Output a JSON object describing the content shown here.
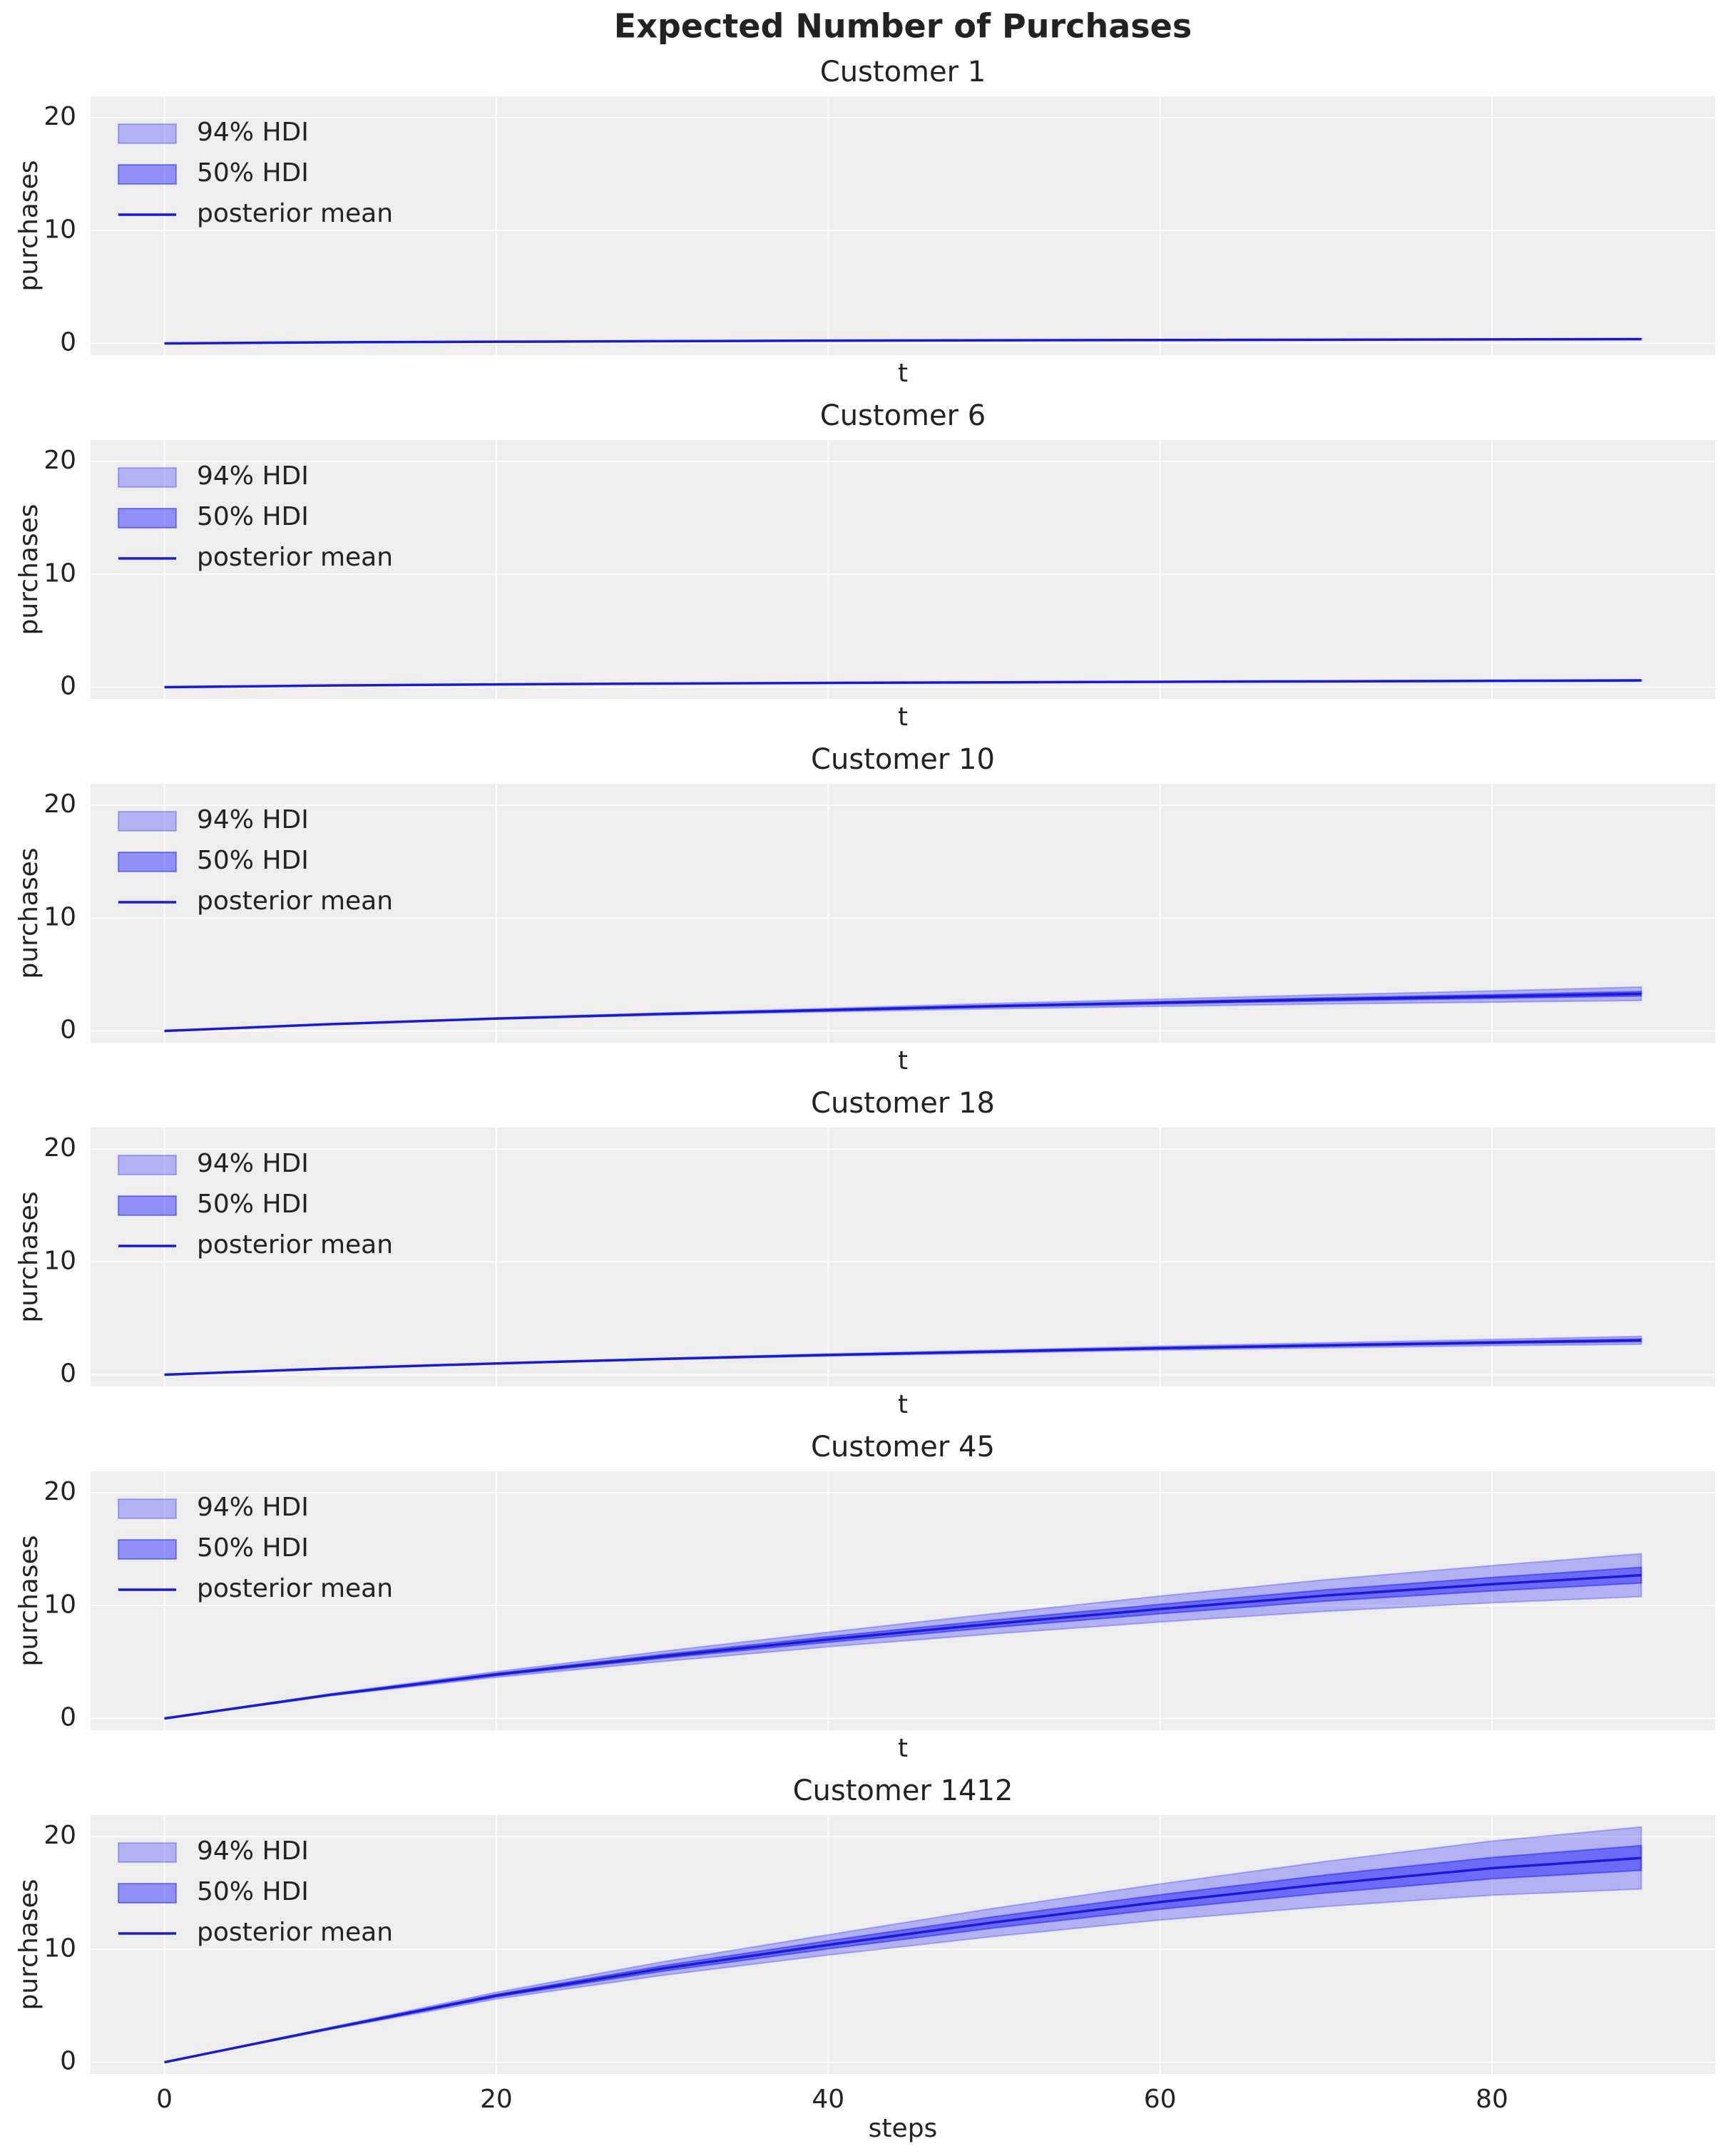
{
  "title": "Expected Number of Purchases",
  "chart_data": [
    {
      "type": "line",
      "title": "Customer 1",
      "xlabel": "t",
      "ylabel": "purchases",
      "show_xtick_labels": false,
      "x": [
        0,
        10,
        20,
        30,
        40,
        50,
        60,
        70,
        80,
        89
      ],
      "xlim": [
        -4.45,
        93.45
      ],
      "ylim": [
        -1.04,
        21.9
      ],
      "xticks": [
        0,
        20,
        40,
        60,
        80
      ],
      "yticks": [
        0,
        10,
        20
      ],
      "grid": true,
      "legend": "upper left",
      "series": [
        {
          "name": "94% HDI",
          "color": "#0000ff",
          "opacity": 0.25,
          "lower": [
            0,
            0.1,
            0.14,
            0.19,
            0.23,
            0.26,
            0.28,
            0.3,
            0.32,
            0.34
          ],
          "upper": [
            0,
            0.1,
            0.16,
            0.21,
            0.27,
            0.3,
            0.33,
            0.36,
            0.4,
            0.42
          ]
        },
        {
          "name": "50% HDI",
          "color": "#0000ff",
          "opacity": 0.4,
          "lower": [
            0,
            0.1,
            0.15,
            0.2,
            0.24,
            0.27,
            0.29,
            0.32,
            0.35,
            0.36
          ],
          "upper": [
            0,
            0.1,
            0.15,
            0.2,
            0.26,
            0.29,
            0.31,
            0.34,
            0.37,
            0.4
          ]
        },
        {
          "name": "posterior mean",
          "color": "#1a1ad6",
          "values": [
            0,
            0.1,
            0.15,
            0.2,
            0.25,
            0.28,
            0.3,
            0.33,
            0.36,
            0.38
          ]
        }
      ]
    },
    {
      "type": "line",
      "title": "Customer 6",
      "xlabel": "t",
      "ylabel": "purchases",
      "show_xtick_labels": false,
      "x": [
        0,
        10,
        20,
        30,
        40,
        50,
        60,
        70,
        80,
        89
      ],
      "xlim": [
        -4.45,
        93.45
      ],
      "ylim": [
        -1.04,
        21.9
      ],
      "xticks": [
        0,
        20,
        40,
        60,
        80
      ],
      "yticks": [
        0,
        10,
        20
      ],
      "grid": true,
      "legend": "upper left",
      "series": [
        {
          "name": "94% HDI",
          "color": "#0000ff",
          "opacity": 0.25,
          "lower": [
            0,
            0.14,
            0.23,
            0.3,
            0.35,
            0.4,
            0.44,
            0.47,
            0.5,
            0.53
          ],
          "upper": [
            0,
            0.16,
            0.27,
            0.34,
            0.41,
            0.46,
            0.52,
            0.57,
            0.62,
            0.67
          ]
        },
        {
          "name": "50% HDI",
          "color": "#0000ff",
          "opacity": 0.4,
          "lower": [
            0,
            0.15,
            0.24,
            0.31,
            0.37,
            0.42,
            0.46,
            0.5,
            0.54,
            0.57
          ],
          "upper": [
            0,
            0.15,
            0.26,
            0.33,
            0.39,
            0.44,
            0.5,
            0.54,
            0.58,
            0.63
          ]
        },
        {
          "name": "posterior mean",
          "color": "#1a1ad6",
          "values": [
            0,
            0.15,
            0.25,
            0.32,
            0.38,
            0.43,
            0.48,
            0.52,
            0.56,
            0.6
          ]
        }
      ]
    },
    {
      "type": "line",
      "title": "Customer 10",
      "xlabel": "t",
      "ylabel": "purchases",
      "show_xtick_labels": false,
      "x": [
        0,
        10,
        20,
        30,
        40,
        50,
        60,
        70,
        80,
        89
      ],
      "xlim": [
        -4.45,
        93.45
      ],
      "ylim": [
        -1.04,
        21.9
      ],
      "xticks": [
        0,
        20,
        40,
        60,
        80
      ],
      "yticks": [
        0,
        10,
        20
      ],
      "grid": true,
      "legend": "upper left",
      "series": [
        {
          "name": "94% HDI",
          "color": "#0000ff",
          "opacity": 0.25,
          "lower": [
            0,
            0.58,
            1.05,
            1.4,
            1.69,
            1.96,
            2.18,
            2.39,
            2.55,
            2.7
          ],
          "upper": [
            0,
            0.62,
            1.15,
            1.6,
            2.01,
            2.44,
            2.82,
            3.21,
            3.55,
            3.9
          ]
        },
        {
          "name": "50% HDI",
          "color": "#0000ff",
          "opacity": 0.4,
          "lower": [
            0,
            0.59,
            1.08,
            1.46,
            1.79,
            2.12,
            2.39,
            2.66,
            2.88,
            3.1
          ],
          "upper": [
            0,
            0.61,
            1.12,
            1.54,
            1.91,
            2.28,
            2.61,
            2.94,
            3.22,
            3.5
          ]
        },
        {
          "name": "posterior mean",
          "color": "#1a1ad6",
          "values": [
            0,
            0.6,
            1.1,
            1.5,
            1.85,
            2.2,
            2.5,
            2.8,
            3.05,
            3.3
          ]
        }
      ]
    },
    {
      "type": "line",
      "title": "Customer 18",
      "xlabel": "t",
      "ylabel": "purchases",
      "show_xtick_labels": false,
      "x": [
        0,
        10,
        20,
        30,
        40,
        50,
        60,
        70,
        80,
        89
      ],
      "xlim": [
        -4.45,
        93.45
      ],
      "ylim": [
        -1.04,
        21.9
      ],
      "xticks": [
        0,
        20,
        40,
        60,
        80
      ],
      "yticks": [
        0,
        10,
        20
      ],
      "grid": true,
      "legend": "upper left",
      "series": [
        {
          "name": "94% HDI",
          "color": "#0000ff",
          "opacity": 0.25,
          "lower": [
            0,
            0.54,
            0.97,
            1.34,
            1.65,
            1.91,
            2.17,
            2.37,
            2.57,
            2.7
          ],
          "upper": [
            0,
            0.56,
            1.03,
            1.46,
            1.85,
            2.19,
            2.53,
            2.83,
            3.13,
            3.4
          ]
        },
        {
          "name": "50% HDI",
          "color": "#0000ff",
          "opacity": 0.4,
          "lower": [
            0,
            0.55,
            0.99,
            1.38,
            1.72,
            2.0,
            2.29,
            2.52,
            2.75,
            2.93
          ],
          "upper": [
            0,
            0.55,
            1.01,
            1.42,
            1.78,
            2.1,
            2.41,
            2.68,
            2.95,
            3.17
          ]
        },
        {
          "name": "posterior mean",
          "color": "#1a1ad6",
          "values": [
            0,
            0.55,
            1.0,
            1.4,
            1.75,
            2.05,
            2.35,
            2.6,
            2.85,
            3.05
          ]
        }
      ]
    },
    {
      "type": "line",
      "title": "Customer 45",
      "xlabel": "t",
      "ylabel": "purchases",
      "show_xtick_labels": false,
      "x": [
        0,
        10,
        20,
        30,
        40,
        50,
        60,
        70,
        80,
        89
      ],
      "xlim": [
        -4.45,
        93.45
      ],
      "ylim": [
        -1.04,
        21.9
      ],
      "xticks": [
        0,
        20,
        40,
        60,
        80
      ],
      "yticks": [
        0,
        10,
        20
      ],
      "grid": true,
      "legend": "upper left",
      "series": [
        {
          "name": "94% HDI",
          "color": "#0000ff",
          "opacity": 0.25,
          "lower": [
            0,
            2.0,
            3.65,
            5.05,
            6.35,
            7.5,
            8.55,
            9.5,
            10.25,
            10.8
          ],
          "upper": [
            0,
            2.2,
            4.15,
            5.95,
            7.65,
            9.3,
            10.85,
            12.3,
            13.55,
            14.6
          ]
        },
        {
          "name": "50% HDI",
          "color": "#0000ff",
          "opacity": 0.4,
          "lower": [
            0,
            2.06,
            3.8,
            5.33,
            6.75,
            8.07,
            9.28,
            10.4,
            11.3,
            12.0
          ],
          "upper": [
            0,
            2.14,
            4.0,
            5.67,
            7.25,
            8.73,
            10.12,
            11.4,
            12.5,
            13.4
          ]
        },
        {
          "name": "posterior mean",
          "color": "#1a1ad6",
          "values": [
            0,
            2.1,
            3.9,
            5.5,
            7.0,
            8.4,
            9.7,
            10.9,
            11.9,
            12.7
          ]
        }
      ]
    },
    {
      "type": "line",
      "title": "Customer 1412",
      "xlabel": "steps",
      "ylabel": "purchases",
      "show_xtick_labels": true,
      "x": [
        0,
        10,
        20,
        30,
        40,
        50,
        60,
        70,
        80,
        89
      ],
      "xlim": [
        -4.45,
        93.45
      ],
      "ylim": [
        -1.04,
        21.9
      ],
      "xticks": [
        0,
        20,
        40,
        60,
        80
      ],
      "yticks": [
        0,
        10,
        20
      ],
      "grid": true,
      "legend": "upper left",
      "series": [
        {
          "name": "94% HDI",
          "color": "#0000ff",
          "opacity": 0.25,
          "lower": [
            0,
            2.9,
            5.6,
            7.7,
            9.5,
            11.15,
            12.6,
            13.8,
            14.8,
            15.35
          ],
          "upper": [
            0,
            3.1,
            6.2,
            8.9,
            11.3,
            13.65,
            15.8,
            17.8,
            19.6,
            20.85
          ]
        },
        {
          "name": "50% HDI",
          "color": "#0000ff",
          "opacity": 0.4,
          "lower": [
            0,
            2.96,
            5.78,
            8.06,
            10.04,
            11.9,
            13.56,
            15.0,
            16.25,
            17.0
          ],
          "upper": [
            0,
            3.04,
            6.02,
            8.54,
            10.76,
            12.9,
            14.84,
            16.6,
            18.15,
            19.2
          ]
        },
        {
          "name": "posterior mean",
          "color": "#1a1ad6",
          "values": [
            0,
            3.0,
            5.9,
            8.3,
            10.4,
            12.4,
            14.2,
            15.8,
            17.2,
            18.1
          ]
        }
      ]
    }
  ]
}
